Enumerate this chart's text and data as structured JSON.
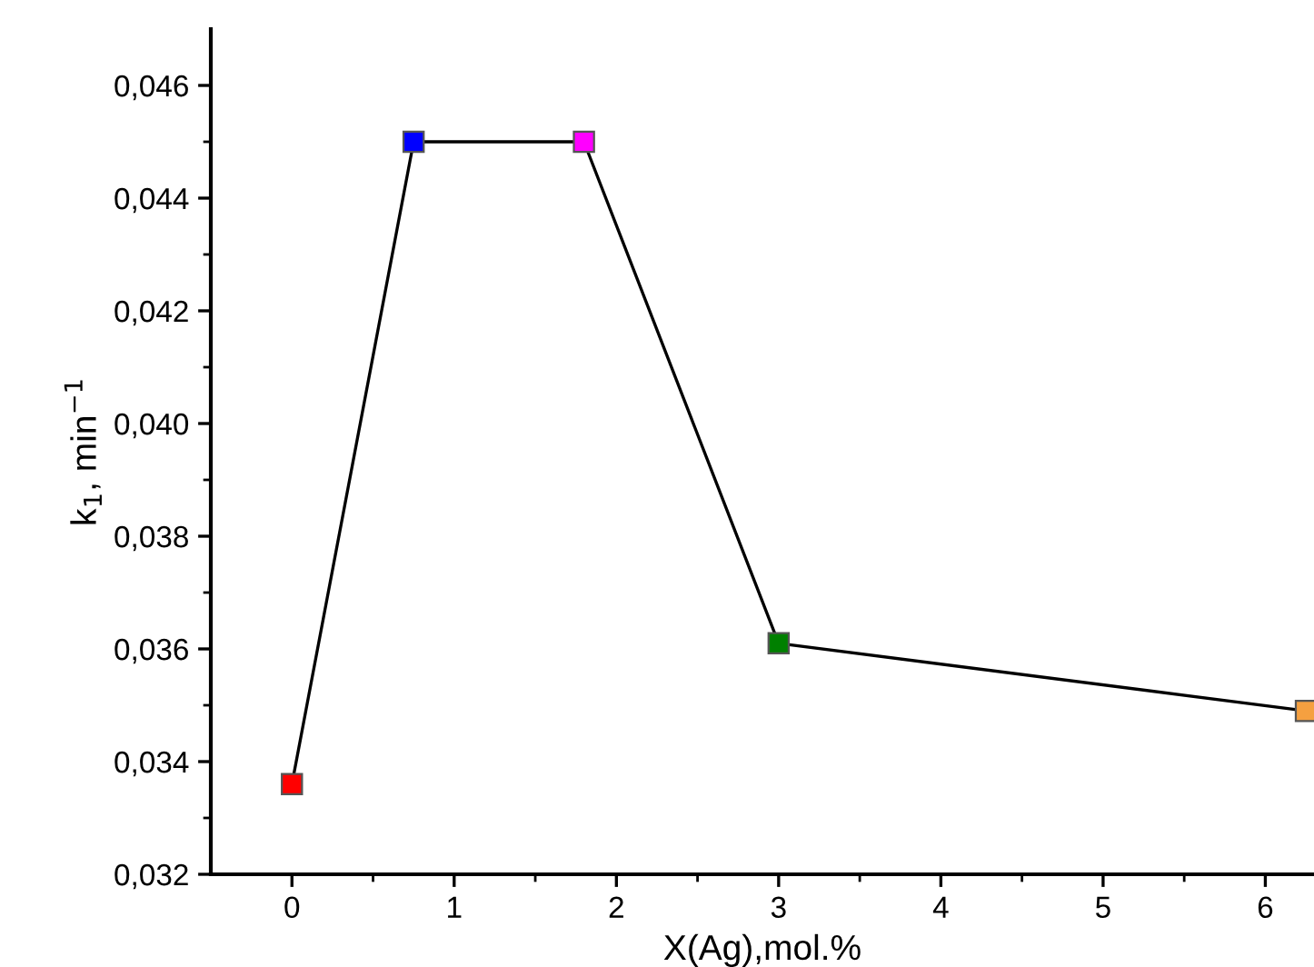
{
  "chart_data": {
    "type": "line",
    "xlabel": "X(Ag),mol.%",
    "ylabel": "k$_{1}$, min$^{−1}$",
    "x": [
      0,
      0.75,
      1.8,
      3,
      6.25
    ],
    "series": [
      {
        "values": [
          0.0336,
          0.045,
          0.045,
          0.0361,
          0.0349
        ],
        "color": "#000000",
        "colors": [
          "#ff0000",
          "#0000ff",
          "#ff00ff",
          "#008000",
          "#f5a040"
        ]
      }
    ],
    "marker": "square",
    "line_style": "solid",
    "grid": false,
    "legend": false,
    "xlim": [
      -0.5,
      6.3
    ],
    "ylim": [
      0.032,
      0.047
    ],
    "xticks": [
      0,
      1,
      2,
      3,
      4,
      5,
      6
    ],
    "yticks": [
      {
        "value": 0.032,
        "label": "0,032"
      },
      {
        "value": 0.034,
        "label": "0,034"
      },
      {
        "value": 0.036,
        "label": "0,036"
      },
      {
        "value": 0.038,
        "label": "0,038"
      },
      {
        "value": 0.04,
        "label": "0,040"
      },
      {
        "value": 0.042,
        "label": "0,042"
      },
      {
        "value": 0.044,
        "label": "0,044"
      },
      {
        "value": 0.046,
        "label": "0,046"
      }
    ]
  }
}
